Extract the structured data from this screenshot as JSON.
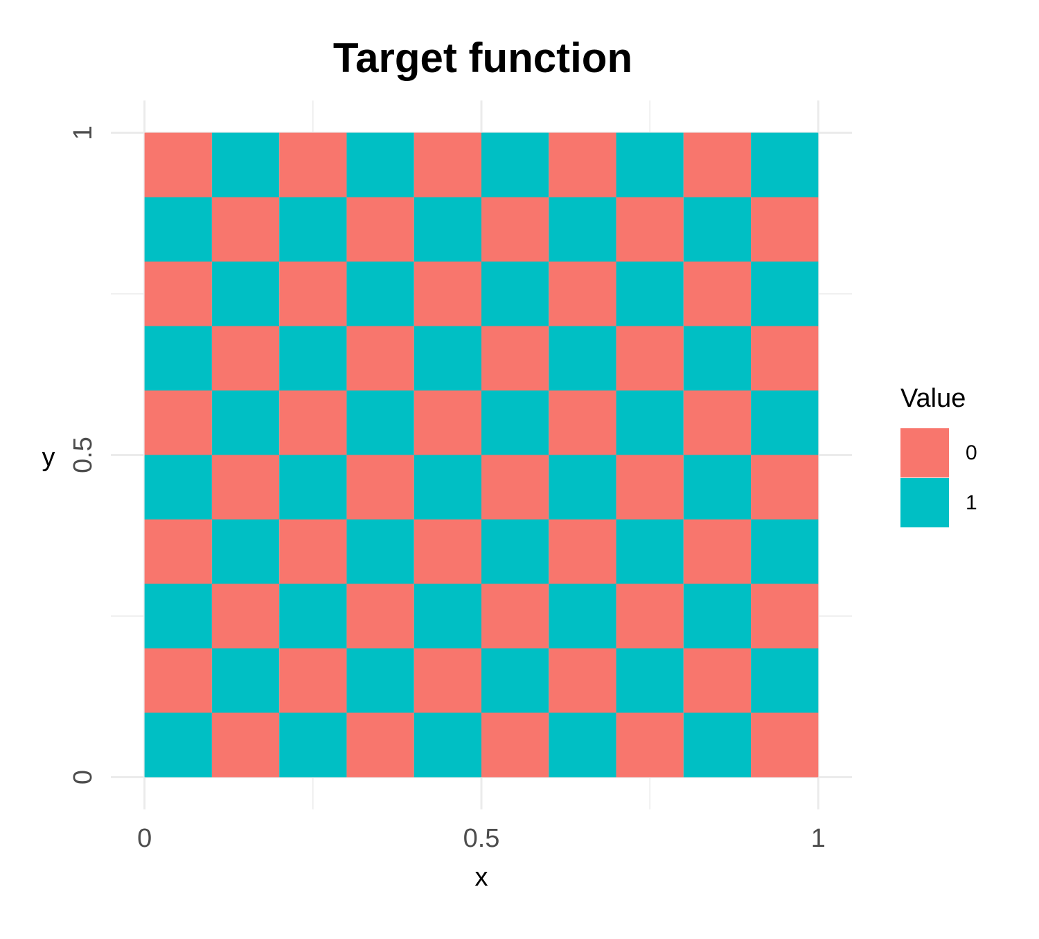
{
  "chart_data": {
    "type": "heatmap",
    "title": "Target function",
    "x_label": "x",
    "y_label": "y",
    "x": [
      0.05,
      0.15,
      0.25,
      0.35,
      0.45,
      0.55,
      0.65,
      0.75,
      0.85,
      0.95
    ],
    "y": [
      0.05,
      0.15,
      0.25,
      0.35,
      0.45,
      0.55,
      0.65,
      0.75,
      0.85,
      0.95
    ],
    "values": [
      [
        1,
        0,
        1,
        0,
        1,
        0,
        1,
        0,
        1,
        0
      ],
      [
        0,
        1,
        0,
        1,
        0,
        1,
        0,
        1,
        0,
        1
      ],
      [
        1,
        0,
        1,
        0,
        1,
        0,
        1,
        0,
        1,
        0
      ],
      [
        0,
        1,
        0,
        1,
        0,
        1,
        0,
        1,
        0,
        1
      ],
      [
        1,
        0,
        1,
        0,
        1,
        0,
        1,
        0,
        1,
        0
      ],
      [
        0,
        1,
        0,
        1,
        0,
        1,
        0,
        1,
        0,
        1
      ],
      [
        1,
        0,
        1,
        0,
        1,
        0,
        1,
        0,
        1,
        0
      ],
      [
        0,
        1,
        0,
        1,
        0,
        1,
        0,
        1,
        0,
        1
      ],
      [
        1,
        0,
        1,
        0,
        1,
        0,
        1,
        0,
        1,
        0
      ],
      [
        0,
        1,
        0,
        1,
        0,
        1,
        0,
        1,
        0,
        1
      ]
    ],
    "xlim": [
      -0.05,
      1.05
    ],
    "ylim": [
      -0.05,
      1.05
    ],
    "xticks": [
      0,
      0.5,
      1
    ],
    "yticks": [
      0,
      0.5,
      1
    ],
    "x_minor_ticks": [
      0.25,
      0.75
    ],
    "y_minor_ticks": [
      0.25,
      0.75
    ],
    "grid": true,
    "legend_title": "Value",
    "legend": [
      {
        "name": "0",
        "color": "#F8766D"
      },
      {
        "name": "1",
        "color": "#00BFC4"
      }
    ],
    "legend_position": "right"
  }
}
